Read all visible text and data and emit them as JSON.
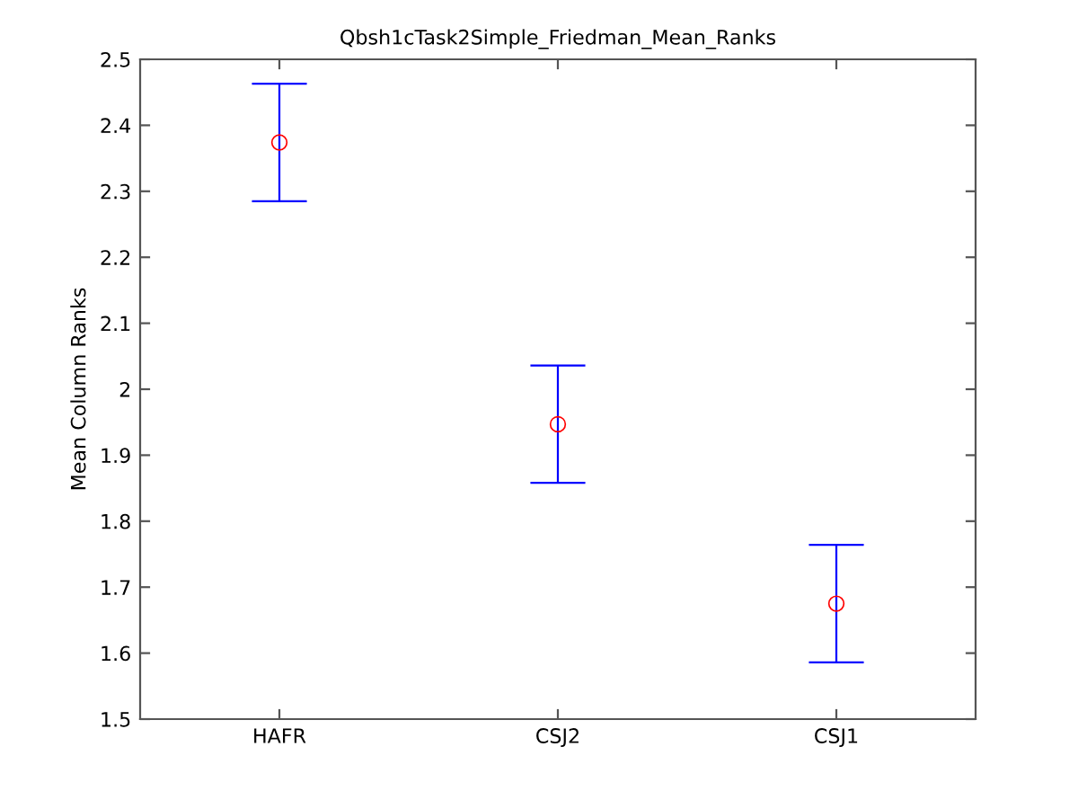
{
  "chart_data": {
    "type": "scatter",
    "title": "Qbsh1cTask2Simple_Friedman_Mean_Ranks",
    "ylabel": "Mean Column Ranks",
    "categories": [
      "HAFR",
      "CSJ2",
      "CSJ1"
    ],
    "series": [
      {
        "color": "#0000ff",
        "colors": [
          "#ff0000",
          "#ff0000",
          "#ff0000"
        ],
        "values": [
          2.374,
          1.947,
          1.675
        ],
        "errors": [
          [
            2.285,
            2.463
          ],
          [
            1.858,
            2.036
          ],
          [
            1.586,
            1.764
          ]
        ]
      }
    ],
    "marker": "circle",
    "grid": false,
    "legend": false,
    "ylim": [
      1.5,
      2.5
    ],
    "yticks": [
      1.5,
      1.6,
      1.7,
      1.8,
      1.9,
      2,
      2.1,
      2.2,
      2.3,
      2.4,
      2.5
    ]
  }
}
